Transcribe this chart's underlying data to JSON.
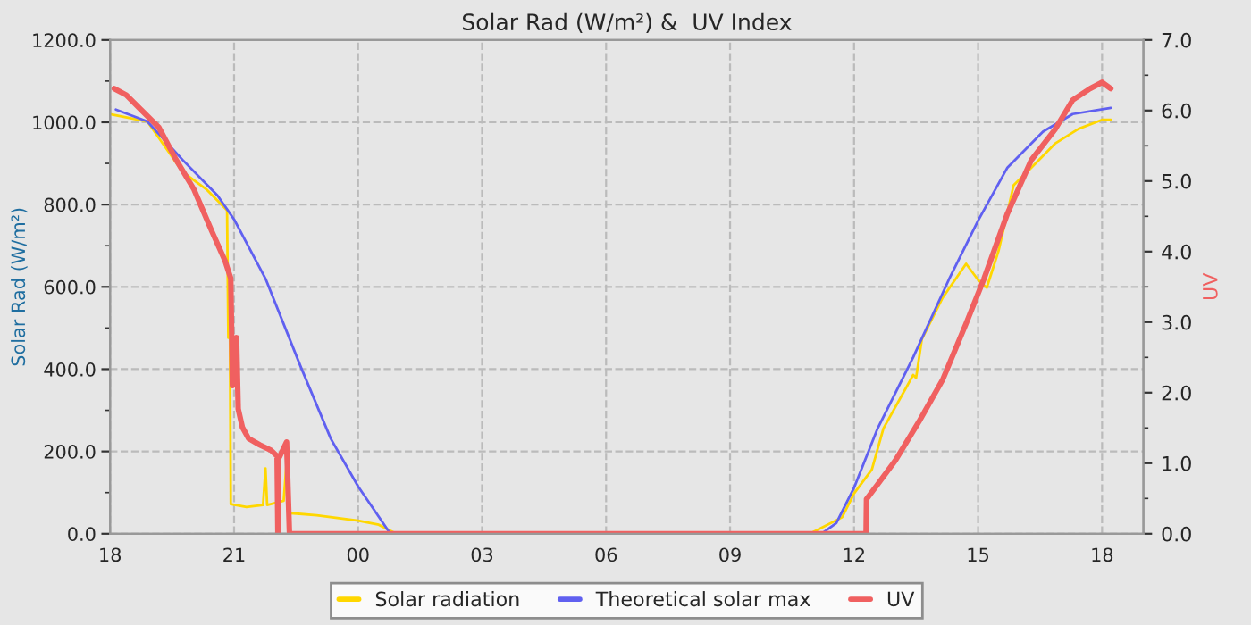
{
  "chart_data": {
    "type": "line",
    "title": "Solar Rad (W/m²) &  UV Index",
    "ylabel": "Solar Rad (W/m²)",
    "y2label": "UV",
    "xlim": [
      18,
      43
    ],
    "xticks": [
      {
        "value": 18,
        "label": "18"
      },
      {
        "value": 21,
        "label": "21"
      },
      {
        "value": 24,
        "label": "00"
      },
      {
        "value": 27,
        "label": "03"
      },
      {
        "value": 30,
        "label": "06"
      },
      {
        "value": 33,
        "label": "09"
      },
      {
        "value": 36,
        "label": "12"
      },
      {
        "value": 39,
        "label": "15"
      },
      {
        "value": 42,
        "label": "18"
      }
    ],
    "ylim": [
      0,
      1200
    ],
    "yticks": [
      {
        "value": 0,
        "label": "0.0"
      },
      {
        "value": 200,
        "label": "200.0"
      },
      {
        "value": 400,
        "label": "400.0"
      },
      {
        "value": 600,
        "label": "600.0"
      },
      {
        "value": 800,
        "label": "800.0"
      },
      {
        "value": 1000,
        "label": "1000.0"
      },
      {
        "value": 1200,
        "label": "1200.0"
      }
    ],
    "y2lim": [
      0,
      7
    ],
    "y2ticks": [
      {
        "value": 0,
        "label": "0.0"
      },
      {
        "value": 1,
        "label": "1.0"
      },
      {
        "value": 2,
        "label": "2.0"
      },
      {
        "value": 3,
        "label": "3.0"
      },
      {
        "value": 4,
        "label": "4.0"
      },
      {
        "value": 5,
        "label": "5.0"
      },
      {
        "value": 6,
        "label": "6.0"
      },
      {
        "value": 7,
        "label": "7.0"
      }
    ],
    "grid": true,
    "legend": "bottom",
    "marker": "none",
    "line_style": "solid",
    "series": [
      {
        "name": "Solar radiation",
        "color": "#ffd700",
        "x": [
          18.0,
          18.9,
          19.75,
          20.33,
          20.83,
          20.86,
          20.9,
          20.92,
          21.3,
          21.7,
          21.76,
          21.8,
          22.2,
          22.27,
          22.32,
          22.37,
          23.0,
          24.0,
          24.5,
          24.92,
          30.0,
          34.93,
          35.71,
          36.0,
          36.43,
          36.71,
          37.43,
          37.5,
          37.64,
          38.14,
          38.71,
          39.0,
          39.21,
          39.5,
          39.86,
          40.29,
          40.86,
          41.43,
          42.0,
          42.21
        ],
        "values": [
          1020,
          1002,
          880,
          837,
          786,
          476,
          476,
          72,
          65,
          70,
          159,
          70,
          80,
          173,
          60,
          50,
          45,
          32,
          22,
          0,
          0,
          0,
          40,
          98,
          156,
          256,
          386,
          379,
          473,
          573,
          656,
          617,
          598,
          689,
          847,
          890,
          948,
          984,
          1006,
          1006
        ]
      },
      {
        "name": "Theoretical solar max",
        "color": "#6060f0",
        "x": [
          18.14,
          18.9,
          19.75,
          20.6,
          21.0,
          21.76,
          22.62,
          23.34,
          24.0,
          24.49,
          24.78,
          30.0,
          35.21,
          35.57,
          36.0,
          36.57,
          37.43,
          38.29,
          39.0,
          39.71,
          40.57,
          41.29,
          42.21
        ],
        "values": [
          1031,
          1002,
          909,
          822,
          764,
          620,
          404,
          231,
          115,
          43,
          0,
          0,
          0,
          26,
          112,
          256,
          429,
          617,
          761,
          890,
          977,
          1020,
          1035
        ]
      },
      {
        "name": "UV",
        "color": "#f06060",
        "axis": "y2",
        "x": [
          18.1,
          18.39,
          18.75,
          19.18,
          19.6,
          20.03,
          20.46,
          20.78,
          20.92,
          20.96,
          21.06,
          21.1,
          21.2,
          21.35,
          21.62,
          21.9,
          22.04,
          22.06,
          22.08,
          22.1,
          22.27,
          22.34,
          30.0,
          36.29,
          36.3,
          36.57,
          37.0,
          37.57,
          38.14,
          38.71,
          39.14,
          39.71,
          40.29,
          40.86,
          41.29,
          41.71,
          42.0,
          42.21
        ],
        "values": [
          6.31,
          6.22,
          6.01,
          5.76,
          5.3,
          4.88,
          4.29,
          3.87,
          3.62,
          2.1,
          2.78,
          1.77,
          1.51,
          1.35,
          1.26,
          1.18,
          1.1,
          0,
          1.1,
          1.09,
          1.3,
          0,
          0,
          0,
          0.49,
          0.7,
          1.04,
          1.59,
          2.18,
          2.98,
          3.61,
          4.54,
          5.3,
          5.73,
          6.15,
          6.31,
          6.4,
          6.31
        ]
      }
    ]
  }
}
